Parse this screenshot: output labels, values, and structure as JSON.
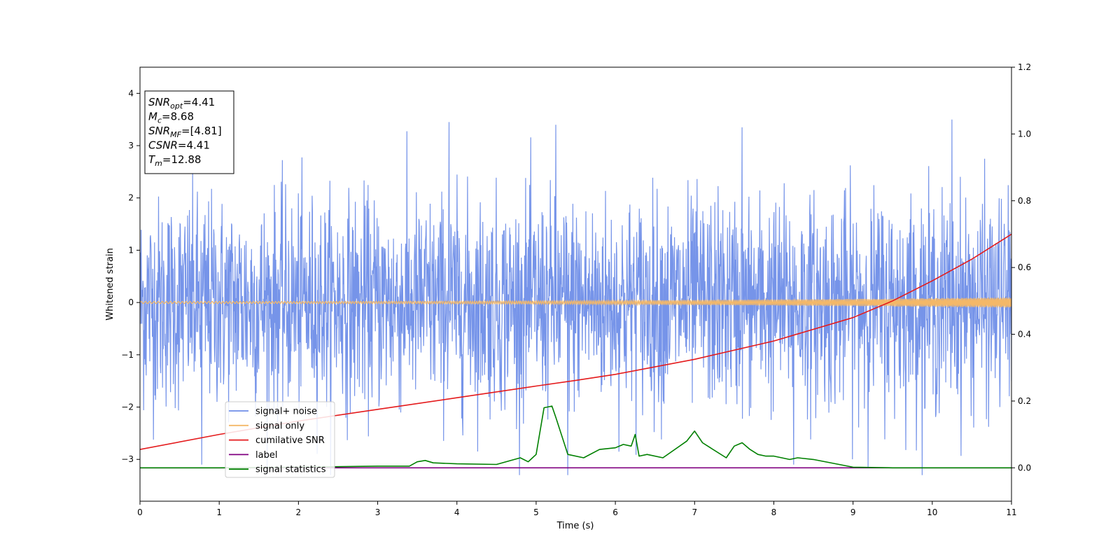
{
  "chart_data": {
    "type": "line",
    "title": "",
    "xlabel": "Time (s)",
    "ylabel": "Whitened strain",
    "xlim": [
      0,
      11
    ],
    "ylim": [
      -3.8,
      4.5
    ],
    "y2lim": [
      -0.1,
      1.2
    ],
    "xticks": [
      0,
      1,
      2,
      3,
      4,
      5,
      6,
      7,
      8,
      9,
      10,
      11
    ],
    "xtick_labels": [
      "0",
      "1",
      "2",
      "3",
      "4",
      "5",
      "6",
      "7",
      "8",
      "9",
      "10",
      "11"
    ],
    "yticks": [
      -3,
      -2,
      -1,
      0,
      1,
      2,
      3,
      4
    ],
    "ytick_labels": [
      "−3",
      "−2",
      "−1",
      "0",
      "1",
      "2",
      "3",
      "4"
    ],
    "y2ticks": [
      0,
      0.2,
      0.4,
      0.6,
      0.8,
      1.0,
      1.2
    ],
    "y2tick_labels": [
      "0.0",
      "0.2",
      "0.4",
      "0.6",
      "0.8",
      "1.0",
      "1.2"
    ],
    "grid": false,
    "legend_position": "lower-left",
    "annotation_box": {
      "position": "top-left",
      "lines": [
        {
          "main": "SNR",
          "sub": "opt",
          "value": "=4.41"
        },
        {
          "main": "M",
          "sub": "c",
          "value": "=8.68"
        },
        {
          "main": "SNR",
          "sub": "MF",
          "value": "=[4.81]"
        },
        {
          "main": "CSNR",
          "sub": "",
          "value": "=4.41"
        },
        {
          "main": "T",
          "sub": "m",
          "value": "=12.88"
        }
      ]
    },
    "series": [
      {
        "name": "signal+ noise",
        "color": "#6f8ee8",
        "axis": "left",
        "kind": "noise",
        "description_range": [
          -3.3,
          3.5
        ],
        "spikes": [
          [
            0.78,
            -3.1
          ],
          [
            3.9,
            3.45
          ],
          [
            5.25,
            3.4
          ],
          [
            5.4,
            -3.3
          ],
          [
            7.6,
            3.35
          ],
          [
            10.25,
            3.5
          ],
          [
            8.25,
            -3.1
          ]
        ]
      },
      {
        "name": "signal only",
        "color": "#f4b868",
        "axis": "left",
        "kind": "chirp",
        "amplitude_start": 0.02,
        "amplitude_end": 0.1
      },
      {
        "name": "cumilative SNR",
        "color": "#e41a1c",
        "axis": "right",
        "x": [
          0,
          1,
          2,
          3,
          4,
          5,
          6,
          5.5,
          7,
          8,
          9,
          9.5,
          10,
          10.5,
          11
        ],
        "y": [
          0.055,
          0.1,
          0.14,
          0.175,
          0.21,
          0.245,
          0.28,
          0.262,
          0.325,
          0.38,
          0.45,
          0.5,
          0.56,
          0.625,
          0.7
        ]
      },
      {
        "name": "label",
        "color": "#800080",
        "axis": "right",
        "x": [
          0,
          11
        ],
        "y": [
          0.0,
          0.0
        ]
      },
      {
        "name": "signal statistics",
        "color": "#008000",
        "axis": "right",
        "x": [
          0,
          1,
          2,
          3,
          3.4,
          3.5,
          3.6,
          3.7,
          4.0,
          4.5,
          4.8,
          4.9,
          5.0,
          5.1,
          5.2,
          5.25,
          5.4,
          5.6,
          5.8,
          6.0,
          6.1,
          6.2,
          6.25,
          6.3,
          6.4,
          6.6,
          6.9,
          7.0,
          7.1,
          7.2,
          7.4,
          7.5,
          7.6,
          7.7,
          7.8,
          7.9,
          8.0,
          8.2,
          8.3,
          8.5,
          9.0,
          9.5,
          10.0,
          11.0
        ],
        "y": [
          0.0,
          0.0,
          0.002,
          0.005,
          0.005,
          0.018,
          0.022,
          0.015,
          0.012,
          0.01,
          0.03,
          0.018,
          0.04,
          0.18,
          0.185,
          0.15,
          0.04,
          0.03,
          0.055,
          0.06,
          0.07,
          0.065,
          0.1,
          0.035,
          0.04,
          0.03,
          0.08,
          0.11,
          0.075,
          0.06,
          0.03,
          0.065,
          0.075,
          0.055,
          0.04,
          0.035,
          0.035,
          0.025,
          0.03,
          0.025,
          0.002,
          0.0,
          0.0,
          0.0
        ]
      }
    ]
  }
}
